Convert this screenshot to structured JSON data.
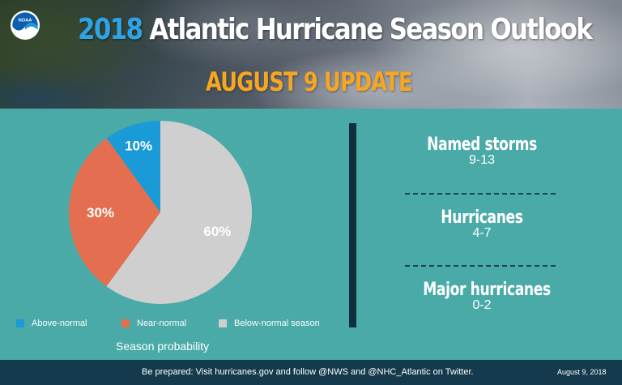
{
  "header": {
    "title_year": "2018",
    "title_rest": "Atlantic Hurricane Season Outlook",
    "subtitle": "AUGUST 9 UPDATE",
    "logo_text": "NOAA"
  },
  "chart_data": {
    "type": "pie",
    "slices": [
      {
        "label": "Above-normal",
        "value": 10,
        "value_label": "10%",
        "color": "#1a9ad6"
      },
      {
        "label": "Near-normal",
        "value": 30,
        "value_label": "30%",
        "color": "#e36f50"
      },
      {
        "label": "Below-normal season",
        "value": 60,
        "value_label": "60%",
        "color": "#cfcfcf"
      }
    ],
    "xlabel": "Season probability",
    "legend_position": "bottom"
  },
  "stats": [
    {
      "label": "Named storms",
      "value": "9-13"
    },
    {
      "label": "Hurricanes",
      "value": "4-7"
    },
    {
      "label": "Major hurricanes",
      "value": "0-2"
    }
  ],
  "footer": {
    "text": "Be prepared: Visit hurricanes.gov and follow @NWS and @NHC_Atlantic on Twitter.",
    "date": "August 9, 2018"
  },
  "colors": {
    "background": "#49aaa8",
    "footer": "#163a4d",
    "divider": "#0f2f3f",
    "title_year": "#2ea3e6",
    "subtitle": "#f6a623"
  }
}
